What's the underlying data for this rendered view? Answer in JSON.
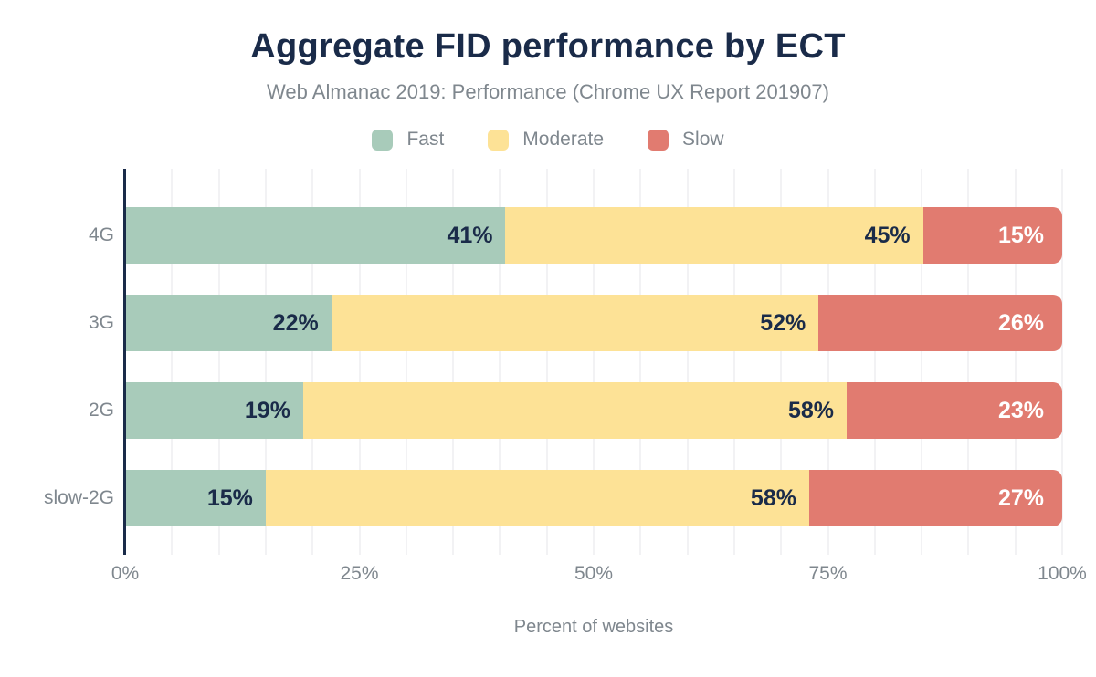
{
  "header": {
    "title": "Aggregate FID performance by ECT",
    "subtitle": "Web Almanac 2019: Performance (Chrome UX Report 201907)"
  },
  "colors": {
    "navy": "#1a2b49",
    "gray_text": "#7f878e",
    "grid": "#f2f2f4",
    "background": "#ffffff",
    "fast": "#a8cbba",
    "moderate": "#fde296",
    "slow": "#e17b70"
  },
  "chart_data": {
    "type": "bar",
    "orientation": "horizontal",
    "stacked": true,
    "title": "Aggregate FID performance by ECT",
    "subtitle": "Web Almanac 2019: Performance (Chrome UX Report 201907)",
    "categories": [
      "4G",
      "3G",
      "2G",
      "slow-2G"
    ],
    "series": [
      {
        "name": "Fast",
        "color": "#a8cbba",
        "label_color": "#1a2b49",
        "values": [
          41,
          22,
          19,
          15
        ]
      },
      {
        "name": "Moderate",
        "color": "#fde296",
        "label_color": "#1a2b49",
        "values": [
          45,
          52,
          58,
          58
        ]
      },
      {
        "name": "Slow",
        "color": "#e17b70",
        "label_color": "#ffffff",
        "values": [
          15,
          26,
          23,
          27
        ]
      }
    ],
    "value_suffix": "%",
    "xlabel": "Percent of websites",
    "ylabel": "",
    "xlim": [
      0,
      100
    ],
    "x_ticks": [
      {
        "label": "0%",
        "value": 0
      },
      {
        "label": "25%",
        "value": 25
      },
      {
        "label": "50%",
        "value": 50
      },
      {
        "label": "75%",
        "value": 75
      },
      {
        "label": "100%",
        "value": 100
      }
    ],
    "minor_grid_step": 5,
    "grid": true,
    "legend_position": "top"
  }
}
